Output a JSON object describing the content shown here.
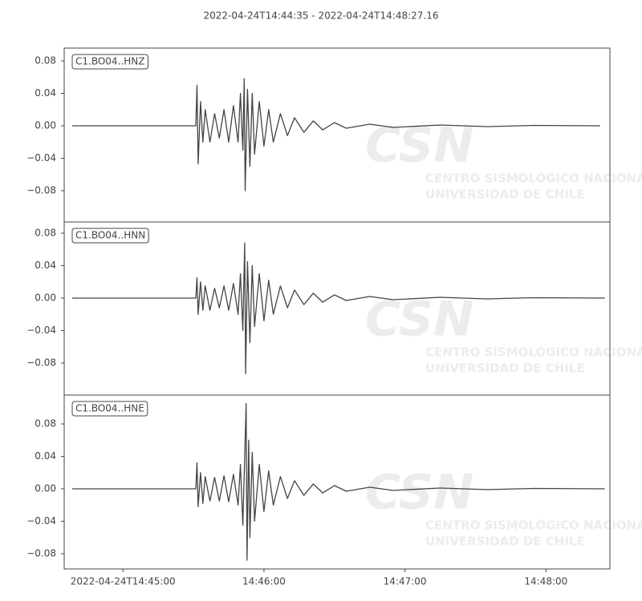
{
  "chart_data": [
    {
      "type": "line",
      "title": "2022-04-24T14:44:35  -  2022-04-24T14:48:27.16",
      "watermark": [
        "CSN",
        "CENTRO SISMOLÓGICO NACIONAL",
        "UNIVERSIDAD DE CHILE"
      ],
      "x": [
        3.4,
        56,
        56.5,
        57,
        58,
        59,
        60,
        62,
        64,
        66,
        68,
        70,
        72,
        74,
        75,
        76,
        76.6,
        77,
        78,
        79,
        80,
        81,
        83,
        85,
        87,
        89,
        92,
        95,
        98,
        102,
        106,
        110,
        115,
        120,
        130,
        140,
        160,
        180,
        200,
        228
      ],
      "series": [
        {
          "name": "C1.BO04..HNZ",
          "color": "#444444",
          "values": [
            0,
            0,
            0.05,
            -0.047,
            0.03,
            -0.02,
            0.02,
            -0.02,
            0.015,
            -0.015,
            0.02,
            -0.02,
            0.025,
            -0.02,
            0.04,
            -0.03,
            0.058,
            -0.08,
            0.045,
            -0.05,
            0.04,
            -0.035,
            0.03,
            -0.025,
            0.02,
            -0.02,
            0.015,
            -0.012,
            0.01,
            -0.008,
            0.006,
            -0.005,
            0.004,
            -0.003,
            0.002,
            -0.002,
            0.001,
            -0.001,
            0.0005,
            0
          ]
        }
      ],
      "xlim": [
        0,
        232.2
      ],
      "ylim": [
        -0.1185,
        0.0958
      ],
      "yticks": [
        {
          "value": -0.08,
          "label": "−0.08"
        },
        {
          "value": -0.04,
          "label": "−0.04"
        },
        {
          "value": 0,
          "label": "0.00"
        },
        {
          "value": 0.04,
          "label": "0.04"
        },
        {
          "value": 0.08,
          "label": "0.08"
        }
      ]
    },
    {
      "type": "line",
      "x": [
        3.4,
        56,
        56.5,
        57,
        58,
        59,
        60,
        62,
        64,
        66,
        68,
        70,
        72,
        74,
        75,
        76,
        76.8,
        77.2,
        78,
        79,
        80,
        81,
        83,
        85,
        87,
        89,
        92,
        95,
        98,
        102,
        106,
        110,
        115,
        120,
        130,
        140,
        160,
        180,
        200,
        230
      ],
      "series": [
        {
          "name": "C1.BO04..HNN",
          "color": "#444444",
          "values": [
            0,
            0,
            0.025,
            -0.02,
            0.02,
            -0.015,
            0.015,
            -0.015,
            0.012,
            -0.012,
            0.015,
            -0.015,
            0.018,
            -0.02,
            0.03,
            -0.04,
            0.068,
            -0.093,
            0.045,
            -0.055,
            0.04,
            -0.035,
            0.03,
            -0.028,
            0.022,
            -0.02,
            0.015,
            -0.012,
            0.01,
            -0.008,
            0.006,
            -0.005,
            0.004,
            -0.003,
            0.002,
            -0.002,
            0.001,
            -0.001,
            0.0005,
            0
          ]
        }
      ],
      "xlim": [
        0,
        232.2
      ],
      "ylim": [
        -0.1195,
        0.0938
      ],
      "yticks": [
        {
          "value": -0.08,
          "label": "−0.08"
        },
        {
          "value": -0.04,
          "label": "−0.04"
        },
        {
          "value": 0,
          "label": "0.00"
        },
        {
          "value": 0.04,
          "label": "0.04"
        },
        {
          "value": 0.08,
          "label": "0.08"
        }
      ]
    },
    {
      "type": "line",
      "x": [
        3.4,
        56,
        56.5,
        57,
        58,
        59,
        60,
        62,
        64,
        66,
        68,
        70,
        72,
        74,
        75,
        76,
        77.4,
        77.8,
        78.5,
        79,
        80,
        81,
        83,
        85,
        87,
        89,
        92,
        95,
        98,
        102,
        106,
        110,
        115,
        120,
        130,
        140,
        160,
        180,
        200,
        230
      ],
      "series": [
        {
          "name": "C1.BO04..HNE",
          "color": "#444444",
          "values": [
            0,
            0,
            0.032,
            -0.022,
            0.02,
            -0.018,
            0.015,
            -0.015,
            0.014,
            -0.015,
            0.016,
            -0.016,
            0.018,
            -0.02,
            0.03,
            -0.045,
            0.105,
            -0.088,
            0.06,
            -0.06,
            0.045,
            -0.04,
            0.03,
            -0.028,
            0.022,
            -0.02,
            0.015,
            -0.012,
            0.01,
            -0.008,
            0.006,
            -0.005,
            0.004,
            -0.003,
            0.002,
            -0.002,
            0.001,
            -0.001,
            0.0005,
            0
          ]
        }
      ],
      "xlim": [
        0,
        232.2
      ],
      "ylim": [
        -0.0988,
        0.1156
      ],
      "yticks": [
        {
          "value": -0.08,
          "label": "−0.08"
        },
        {
          "value": -0.04,
          "label": "−0.04"
        },
        {
          "value": 0,
          "label": "0.00"
        },
        {
          "value": 0.04,
          "label": "0.04"
        },
        {
          "value": 0.08,
          "label": "0.08"
        }
      ],
      "xticks": [
        {
          "value": 25,
          "label": "2022-04-24T14:45:00"
        },
        {
          "value": 85,
          "label": "14:46:00"
        },
        {
          "value": 145,
          "label": "14:47:00"
        },
        {
          "value": 205,
          "label": "14:48:00"
        }
      ]
    }
  ]
}
